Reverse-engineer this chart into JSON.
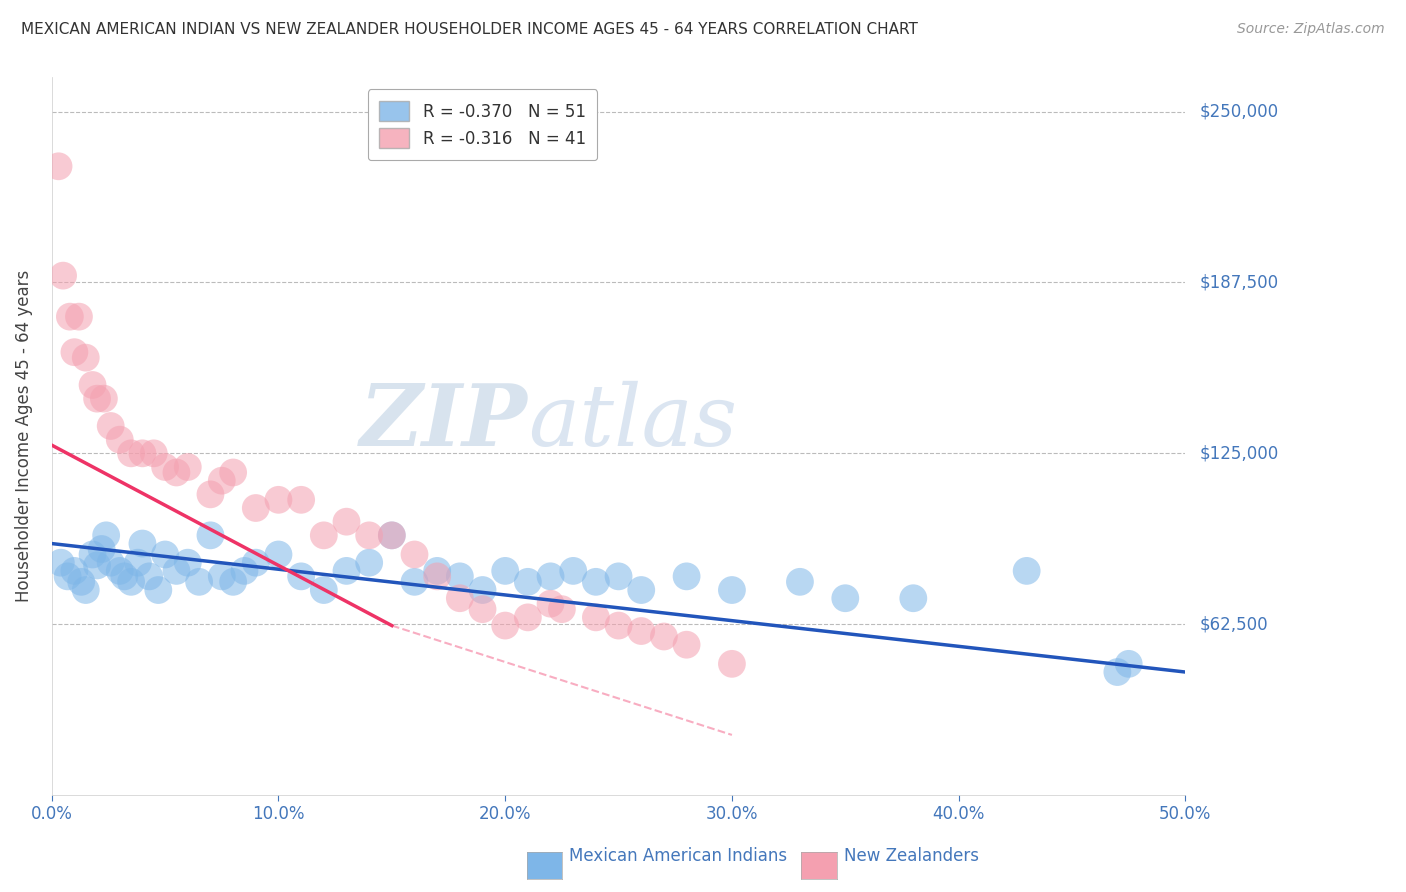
{
  "title": "MEXICAN AMERICAN INDIAN VS NEW ZEALANDER HOUSEHOLDER INCOME AGES 45 - 64 YEARS CORRELATION CHART",
  "source": "Source: ZipAtlas.com",
  "xlabel_ticks": [
    "0.0%",
    "10.0%",
    "20.0%",
    "30.0%",
    "40.0%",
    "50.0%"
  ],
  "xlabel_vals": [
    0,
    10,
    20,
    30,
    40,
    50
  ],
  "ylabel_ticks": [
    "$62,500",
    "$125,000",
    "$187,500",
    "$250,000"
  ],
  "ylabel_vals": [
    62500,
    125000,
    187500,
    250000
  ],
  "xlim": [
    0,
    50
  ],
  "ylim": [
    0,
    262500
  ],
  "legend_entry1": "R = -0.370   N = 51",
  "legend_entry2": "R = -0.316   N = 41",
  "blue_color": "#7EB6E8",
  "pink_color": "#F4A0B0",
  "blue_line_color": "#2255BB",
  "pink_line_color": "#EE3366",
  "watermark_zip": "ZIP",
  "watermark_atlas": "atlas",
  "background_color": "#ffffff",
  "grid_color": "#bbbbbb",
  "blue_scatter_x": [
    0.4,
    0.7,
    1.0,
    1.3,
    1.5,
    1.8,
    2.0,
    2.2,
    2.4,
    2.6,
    3.0,
    3.2,
    3.5,
    3.8,
    4.0,
    4.3,
    4.7,
    5.0,
    5.5,
    6.0,
    6.5,
    7.0,
    7.5,
    8.0,
    8.5,
    9.0,
    10.0,
    11.0,
    12.0,
    13.0,
    14.0,
    15.0,
    16.0,
    17.0,
    18.0,
    19.0,
    20.0,
    21.0,
    22.0,
    23.0,
    24.0,
    25.0,
    26.0,
    28.0,
    30.0,
    33.0,
    35.0,
    38.0,
    43.0,
    47.0,
    47.5
  ],
  "blue_scatter_y": [
    85000,
    80000,
    82000,
    78000,
    75000,
    88000,
    84000,
    90000,
    95000,
    85000,
    82000,
    80000,
    78000,
    85000,
    92000,
    80000,
    75000,
    88000,
    82000,
    85000,
    78000,
    95000,
    80000,
    78000,
    82000,
    85000,
    88000,
    80000,
    75000,
    82000,
    85000,
    95000,
    78000,
    82000,
    80000,
    75000,
    82000,
    78000,
    80000,
    82000,
    78000,
    80000,
    75000,
    80000,
    75000,
    78000,
    72000,
    72000,
    82000,
    45000,
    48000
  ],
  "pink_scatter_x": [
    0.3,
    0.5,
    0.8,
    1.0,
    1.2,
    1.5,
    1.8,
    2.0,
    2.3,
    2.6,
    3.0,
    3.5,
    4.0,
    4.5,
    5.0,
    5.5,
    6.0,
    7.0,
    7.5,
    8.0,
    9.0,
    10.0,
    11.0,
    12.0,
    13.0,
    14.0,
    15.0,
    16.0,
    17.0,
    18.0,
    19.0,
    20.0,
    21.0,
    22.0,
    22.5,
    24.0,
    25.0,
    26.0,
    27.0,
    28.0,
    30.0
  ],
  "pink_scatter_y": [
    230000,
    190000,
    175000,
    162000,
    175000,
    160000,
    150000,
    145000,
    145000,
    135000,
    130000,
    125000,
    125000,
    125000,
    120000,
    118000,
    120000,
    110000,
    115000,
    118000,
    105000,
    108000,
    108000,
    95000,
    100000,
    95000,
    95000,
    88000,
    80000,
    72000,
    68000,
    62000,
    65000,
    70000,
    68000,
    65000,
    62000,
    60000,
    58000,
    55000,
    48000
  ],
  "blue_line_x0": 0,
  "blue_line_x1": 50,
  "blue_line_y0": 92000,
  "blue_line_y1": 45000,
  "pink_line_x0": 0,
  "pink_line_x1": 15,
  "pink_line_y0": 128000,
  "pink_line_y1": 62000,
  "pink_dash_x0": 15,
  "pink_dash_x1": 30,
  "pink_dash_y0": 62000,
  "pink_dash_y1": 22000
}
